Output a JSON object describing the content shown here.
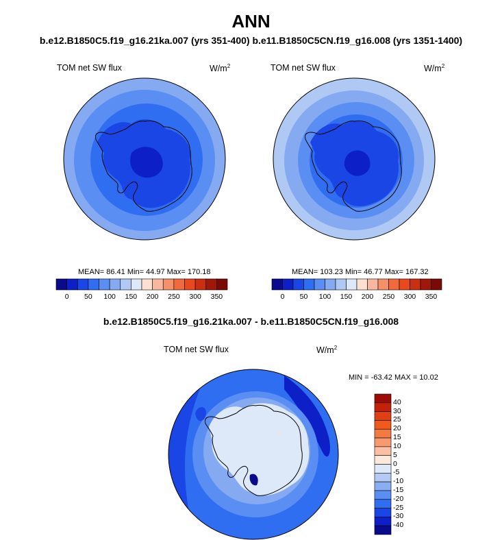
{
  "title": "ANN",
  "subtitle": "b.e12.B1850C5.f19_g16.21ka.007 (yrs 351-400) b.e11.B1850C5CN.f19_g16.008 (yrs 1351-1400)",
  "diff_title": "b.e12.B1850C5.f19_g16.21ka.007 - b.e11.B1850C5CN.f19_g16.008",
  "panels": [
    {
      "label": "TOM net SW flux",
      "units_base": "W/m",
      "units_exp": "2",
      "stats": "MEAN=  86.41  Min=  44.97  Max= 170.18"
    },
    {
      "label": "TOM net SW flux",
      "units_base": "W/m",
      "units_exp": "2",
      "stats": "MEAN= 103.23  Min=  46.77  Max= 167.32"
    },
    {
      "label": "TOM net SW flux",
      "units_base": "W/m",
      "units_exp": "2",
      "stats": "MIN = -63.42 MAX =  10.02"
    }
  ],
  "colorbar_abs": {
    "ticks": [
      "0",
      "50",
      "100",
      "150",
      "200",
      "250",
      "300",
      "350"
    ],
    "colors": [
      "#0a0a8c",
      "#0d20c8",
      "#1a46e6",
      "#2f6ef0",
      "#5a8ef2",
      "#85aaf2",
      "#b0c8f4",
      "#dde8f8",
      "#fde0d2",
      "#f8b8a0",
      "#f4906a",
      "#f06a3c",
      "#e84a1e",
      "#c83010",
      "#a01808",
      "#7a0a04"
    ]
  },
  "colorbar_diff": {
    "ticks": [
      "40",
      "30",
      "25",
      "20",
      "15",
      "10",
      "5",
      "0",
      "-5",
      "-10",
      "-15",
      "-20",
      "-25",
      "-30",
      "-40"
    ],
    "colors": [
      "#9e0a04",
      "#c42208",
      "#e04010",
      "#f05a1e",
      "#f47a44",
      "#f89a70",
      "#fbc0a4",
      "#fde8dc",
      "#dde8f8",
      "#b4caf4",
      "#8aaef2",
      "#5a8ef2",
      "#2f6ef0",
      "#1a46e6",
      "#0d20c8",
      "#0a0a8c"
    ]
  },
  "chart_data": [
    {
      "type": "heatmap",
      "title": "TOM net SW flux",
      "units": "W/m2",
      "mean": 86.41,
      "min": 44.97,
      "max": 170.18,
      "colorbar_levels": [
        0,
        50,
        100,
        150,
        200,
        250,
        300,
        350
      ]
    },
    {
      "type": "heatmap",
      "title": "TOM net SW flux",
      "units": "W/m2",
      "mean": 103.23,
      "min": 46.77,
      "max": 167.32,
      "colorbar_levels": [
        0,
        50,
        100,
        150,
        200,
        250,
        300,
        350
      ]
    },
    {
      "type": "heatmap",
      "title": "TOM net SW flux",
      "units": "W/m2",
      "min": -63.42,
      "max": 10.02,
      "colorbar_levels": [
        -40,
        -30,
        -25,
        -20,
        -15,
        -10,
        -5,
        0,
        5,
        10,
        15,
        20,
        25,
        30,
        40
      ]
    }
  ]
}
